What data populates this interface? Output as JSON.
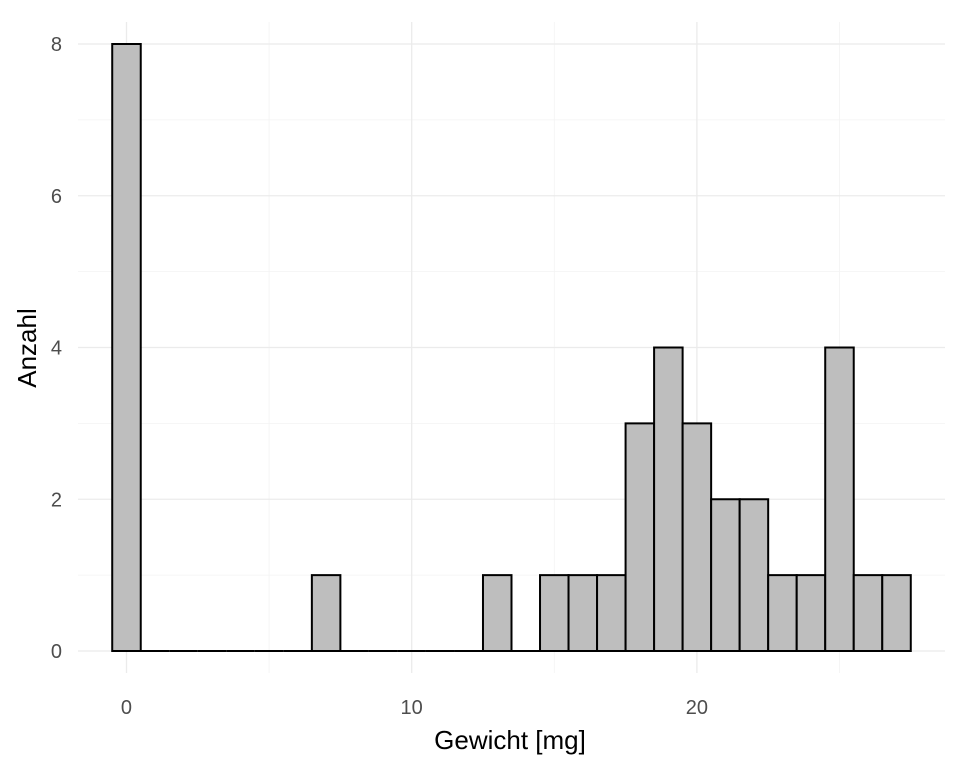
{
  "chart_data": {
    "type": "bar",
    "subtype": "histogram",
    "xlabel": "Gewicht [mg]",
    "ylabel": "Anzahl",
    "bin_width": 1,
    "xlim": [
      -1.7,
      28.7
    ],
    "ylim": [
      0,
      8
    ],
    "x_ticks": [
      0,
      10,
      20
    ],
    "x_minor_ticks": [
      5,
      15,
      25
    ],
    "y_ticks": [
      0,
      2,
      4,
      6,
      8
    ],
    "y_minor_ticks": [
      1,
      3,
      5,
      7
    ],
    "x": [
      0,
      1,
      2,
      3,
      4,
      5,
      6,
      7,
      8,
      9,
      10,
      11,
      12,
      13,
      14,
      15,
      16,
      17,
      18,
      19,
      20,
      21,
      22,
      23,
      24,
      25,
      26,
      27
    ],
    "values": [
      8,
      0,
      0,
      0,
      0,
      0,
      0,
      1,
      0,
      0,
      0,
      0,
      0,
      1,
      0,
      1,
      1,
      1,
      3,
      4,
      3,
      2,
      2,
      1,
      1,
      4,
      1,
      1
    ],
    "grid": true,
    "legend": "none",
    "colors": {
      "bar_fill": "#bebebe",
      "bar_stroke": "#000000",
      "grid": "#ebebeb",
      "tick_label": "#4d4d4d",
      "axis_title": "#000000"
    }
  }
}
